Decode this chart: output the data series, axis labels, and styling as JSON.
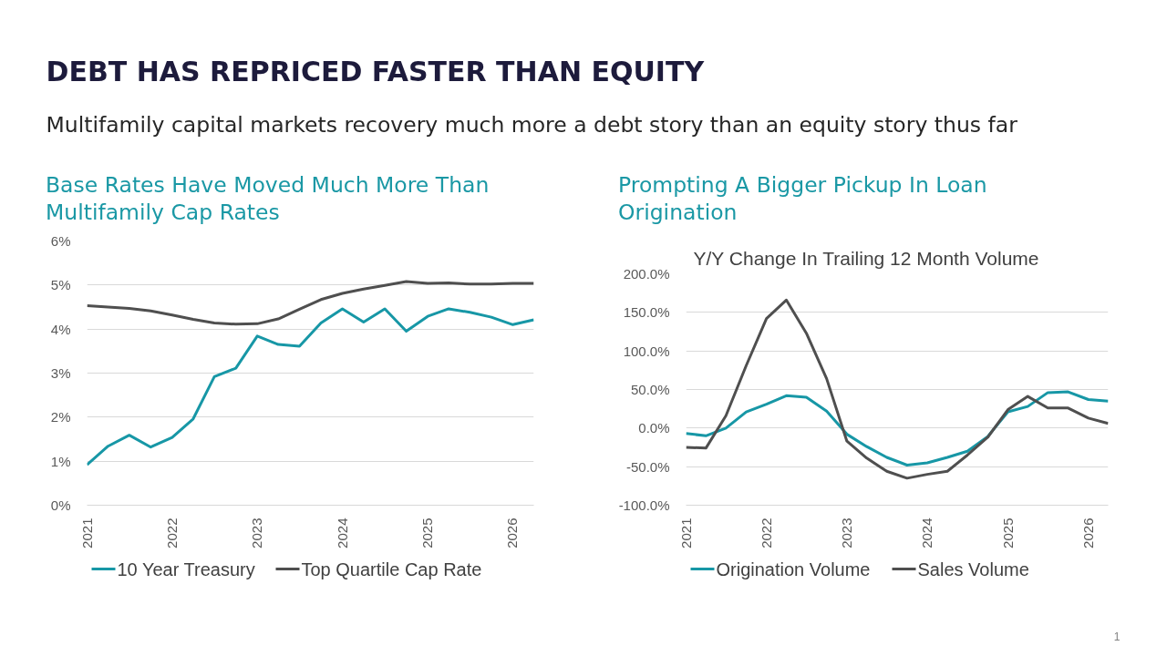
{
  "chart_data": [
    {
      "type": "other",
      "title": "DEBT HAS REPRICED FASTER THAN EQUITY",
      "subtitle": "Multifamily capital markets recovery much more a debt story than an equity story thus far",
      "annotations": [
        "1"
      ]
    },
    {
      "type": "line",
      "title": "Base Rates Have Moved Much More Than Multifamily Cap Rates",
      "x": [
        "2021-01",
        "2021-04",
        "2021-07",
        "2021-10",
        "2022-01",
        "2022-04",
        "2022-07",
        "2022-10",
        "2023-01",
        "2023-04",
        "2023-07",
        "2023-10",
        "2024-01",
        "2024-04",
        "2024-07",
        "2024-10",
        "2025-01",
        "2025-04",
        "2025-07",
        "2025-10",
        "2026-01",
        "2026-04"
      ],
      "series": [
        {
          "name": "10 Year Treasury",
          "color": "#1797a6",
          "values": [
            0.92,
            1.34,
            1.59,
            1.32,
            1.54,
            1.96,
            2.92,
            3.11,
            3.84,
            3.65,
            3.61,
            4.14,
            4.46,
            4.16,
            4.46,
            3.95,
            4.29,
            4.46,
            4.38,
            4.27,
            4.1,
            4.21
          ]
        },
        {
          "name": "Top Quartile Cap Rate",
          "color": "#4f4f4f",
          "values": [
            4.53,
            4.5,
            4.47,
            4.41,
            4.32,
            4.22,
            4.14,
            4.11,
            4.12,
            4.23,
            4.45,
            4.67,
            4.81,
            4.91,
            4.99,
            5.08,
            5.04,
            5.05,
            5.02,
            5.02,
            5.04,
            5.04
          ]
        }
      ],
      "xlim": [
        "2021-01",
        "2026-04"
      ],
      "xticks": [
        "2021",
        "2022",
        "2023",
        "2024",
        "2025",
        "2026"
      ],
      "ylim": [
        0,
        6
      ],
      "yticks": [
        {
          "value": 0,
          "label": "0%"
        },
        {
          "value": 1,
          "label": "1%"
        },
        {
          "value": 2,
          "label": "2%"
        },
        {
          "value": 3,
          "label": "3%"
        },
        {
          "value": 4,
          "label": "4%"
        },
        {
          "value": 5,
          "label": "5%"
        },
        {
          "value": 6,
          "label": "6%"
        }
      ],
      "grid": "y",
      "legend": "bottom"
    },
    {
      "type": "line",
      "title": "Prompting A Bigger Pickup In Loan Origination",
      "subtitle": "Y/Y Change In Trailing 12 Month Volume",
      "x": [
        "2021-01",
        "2021-04",
        "2021-07",
        "2021-10",
        "2022-01",
        "2022-04",
        "2022-07",
        "2022-10",
        "2023-01",
        "2023-04",
        "2023-07",
        "2023-10",
        "2024-01",
        "2024-04",
        "2024-07",
        "2024-10",
        "2025-01",
        "2025-04",
        "2025-07",
        "2025-10",
        "2026-01",
        "2026-04"
      ],
      "series": [
        {
          "name": "Origination Volume",
          "color": "#1797a6",
          "values": [
            -7,
            -10,
            0,
            21,
            31,
            42,
            40,
            22,
            -8,
            -24,
            -38,
            -48,
            -45,
            -38,
            -30,
            -11,
            21,
            28,
            46,
            47,
            37,
            35
          ]
        },
        {
          "name": "Sales Volume",
          "color": "#4f4f4f",
          "values": [
            -25,
            -26,
            16,
            81,
            142,
            166,
            123,
            64,
            -17,
            -39,
            -56,
            -65,
            -60,
            -56,
            -35,
            -12,
            24,
            41,
            26,
            26,
            13,
            6
          ]
        }
      ],
      "xlim": [
        "2021-01",
        "2026-04"
      ],
      "xticks": [
        "2021",
        "2022",
        "2023",
        "2024",
        "2025",
        "2026"
      ],
      "ylim": [
        -100,
        200
      ],
      "yticks": [
        {
          "value": -100,
          "label": "-100.0%"
        },
        {
          "value": -50,
          "label": "-50.0%"
        },
        {
          "value": 0,
          "label": "0.0%"
        },
        {
          "value": 50,
          "label": "50.0%"
        },
        {
          "value": 100,
          "label": "100.0%"
        },
        {
          "value": 150,
          "label": "150.0%"
        },
        {
          "value": 200,
          "label": "200.0%"
        }
      ],
      "grid": "y",
      "legend": "bottom"
    }
  ]
}
